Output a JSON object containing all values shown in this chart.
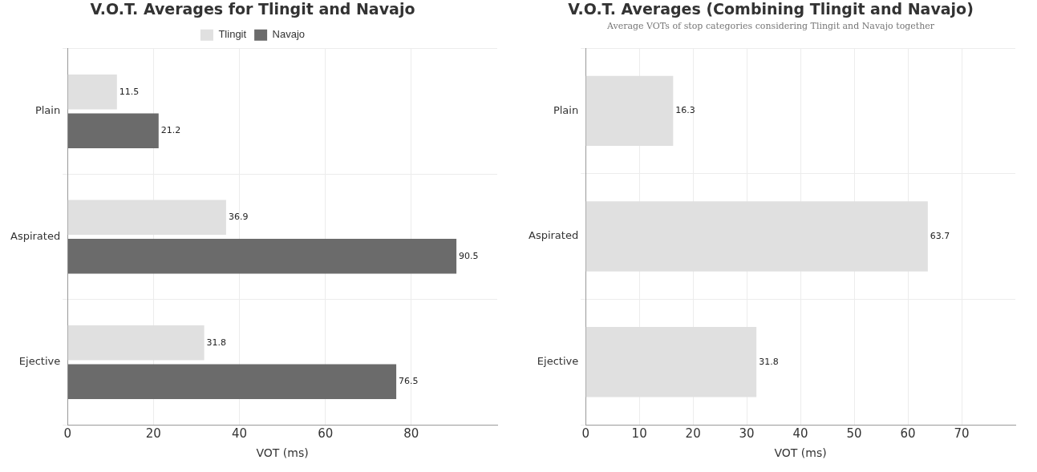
{
  "chart_data": [
    {
      "type": "bar",
      "orientation": "horizontal",
      "title": "V.O.T. Averages for Tlingit and Navajo",
      "xlabel": "VOT (ms)",
      "categories": [
        "Plain",
        "Aspirated",
        "Ejective"
      ],
      "series": [
        {
          "name": "Tlingit",
          "color": "#e0e0e0",
          "values": [
            11.5,
            36.9,
            31.8
          ]
        },
        {
          "name": "Navajo",
          "color": "#6b6b6b",
          "values": [
            21.2,
            90.5,
            76.5
          ]
        }
      ],
      "xlim": [
        0,
        100
      ],
      "xticks": [
        0,
        20,
        40,
        60,
        80
      ],
      "grid": true,
      "legend": "top",
      "data_labels": true
    },
    {
      "type": "bar",
      "orientation": "horizontal",
      "title": "V.O.T. Averages (Combining Tlingit and Navajo)",
      "subtitle": "Average VOTs of stop categories considering Tlingit and Navajo together",
      "xlabel": "VOT (ms)",
      "categories": [
        "Plain",
        "Aspirated",
        "Ejective"
      ],
      "values": [
        16.3,
        63.7,
        31.8
      ],
      "color": "#e0e0e0",
      "xlim": [
        0,
        80
      ],
      "xticks": [
        0,
        10,
        20,
        30,
        40,
        50,
        60,
        70
      ],
      "grid": true,
      "data_labels": true
    }
  ]
}
